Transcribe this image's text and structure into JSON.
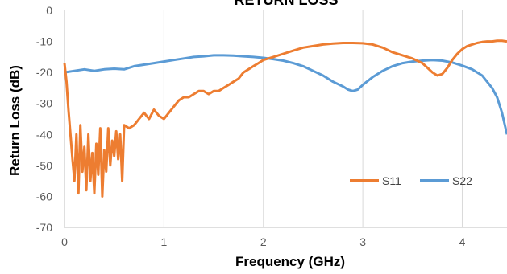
{
  "chart_data": {
    "type": "line",
    "title": "RETURN LOSS",
    "xlabel": "Frequency (GHz)",
    "ylabel": "Return Loss (dB)",
    "xlim": [
      0,
      4.45
    ],
    "ylim": [
      -70,
      0
    ],
    "x_ticks": [
      "0",
      "1",
      "2",
      "3",
      "4"
    ],
    "y_ticks": [
      "0",
      "-10",
      "-20",
      "-30",
      "-40",
      "-50",
      "-60",
      "-70"
    ],
    "grid": "vertical",
    "legend_position": "bottom-right",
    "series": [
      {
        "name": "S11",
        "color": "#ED7D31",
        "points": [
          [
            0.0,
            -17
          ],
          [
            0.02,
            -23
          ],
          [
            0.04,
            -32
          ],
          [
            0.06,
            -40
          ],
          [
            0.08,
            -48
          ],
          [
            0.1,
            -55
          ],
          [
            0.12,
            -40
          ],
          [
            0.14,
            -59
          ],
          [
            0.16,
            -37
          ],
          [
            0.18,
            -52
          ],
          [
            0.2,
            -44
          ],
          [
            0.22,
            -58
          ],
          [
            0.24,
            -40
          ],
          [
            0.26,
            -55
          ],
          [
            0.28,
            -46
          ],
          [
            0.3,
            -59
          ],
          [
            0.32,
            -43
          ],
          [
            0.34,
            -53
          ],
          [
            0.36,
            -38
          ],
          [
            0.38,
            -60
          ],
          [
            0.4,
            -45
          ],
          [
            0.42,
            -52
          ],
          [
            0.44,
            -38
          ],
          [
            0.46,
            -50
          ],
          [
            0.48,
            -42
          ],
          [
            0.5,
            -47
          ],
          [
            0.52,
            -39
          ],
          [
            0.54,
            -48
          ],
          [
            0.56,
            -40
          ],
          [
            0.58,
            -55
          ],
          [
            0.6,
            -37
          ],
          [
            0.65,
            -38
          ],
          [
            0.7,
            -37
          ],
          [
            0.75,
            -35
          ],
          [
            0.8,
            -33
          ],
          [
            0.85,
            -35
          ],
          [
            0.9,
            -32
          ],
          [
            0.95,
            -34
          ],
          [
            1.0,
            -35
          ],
          [
            1.05,
            -33
          ],
          [
            1.1,
            -31
          ],
          [
            1.15,
            -29
          ],
          [
            1.2,
            -28
          ],
          [
            1.25,
            -28
          ],
          [
            1.3,
            -27
          ],
          [
            1.35,
            -26
          ],
          [
            1.4,
            -26
          ],
          [
            1.45,
            -27
          ],
          [
            1.5,
            -26
          ],
          [
            1.55,
            -26
          ],
          [
            1.6,
            -25
          ],
          [
            1.65,
            -24
          ],
          [
            1.7,
            -23
          ],
          [
            1.75,
            -22
          ],
          [
            1.8,
            -20
          ],
          [
            1.85,
            -19
          ],
          [
            1.9,
            -18
          ],
          [
            1.95,
            -17
          ],
          [
            2.0,
            -16
          ],
          [
            2.1,
            -15
          ],
          [
            2.2,
            -14
          ],
          [
            2.3,
            -13
          ],
          [
            2.4,
            -12
          ],
          [
            2.5,
            -11.5
          ],
          [
            2.6,
            -11
          ],
          [
            2.7,
            -10.7
          ],
          [
            2.8,
            -10.5
          ],
          [
            2.9,
            -10.5
          ],
          [
            3.0,
            -10.6
          ],
          [
            3.1,
            -11
          ],
          [
            3.2,
            -12
          ],
          [
            3.3,
            -13.5
          ],
          [
            3.4,
            -14.5
          ],
          [
            3.5,
            -15.5
          ],
          [
            3.6,
            -17
          ],
          [
            3.65,
            -18.5
          ],
          [
            3.7,
            -20
          ],
          [
            3.75,
            -21
          ],
          [
            3.8,
            -20.5
          ],
          [
            3.85,
            -18.5
          ],
          [
            3.9,
            -16
          ],
          [
            3.95,
            -14
          ],
          [
            4.0,
            -12.5
          ],
          [
            4.05,
            -11.5
          ],
          [
            4.1,
            -11
          ],
          [
            4.15,
            -10.5
          ],
          [
            4.2,
            -10.2
          ],
          [
            4.25,
            -10
          ],
          [
            4.3,
            -10
          ],
          [
            4.35,
            -9.8
          ],
          [
            4.4,
            -9.8
          ],
          [
            4.45,
            -10
          ]
        ]
      },
      {
        "name": "S22",
        "color": "#5B9BD5",
        "points": [
          [
            0.0,
            -20
          ],
          [
            0.1,
            -19.5
          ],
          [
            0.2,
            -19
          ],
          [
            0.3,
            -19.5
          ],
          [
            0.4,
            -19
          ],
          [
            0.5,
            -18.8
          ],
          [
            0.6,
            -19
          ],
          [
            0.7,
            -18
          ],
          [
            0.8,
            -17.5
          ],
          [
            0.9,
            -17
          ],
          [
            1.0,
            -16.5
          ],
          [
            1.1,
            -16
          ],
          [
            1.2,
            -15.5
          ],
          [
            1.3,
            -15
          ],
          [
            1.4,
            -14.8
          ],
          [
            1.5,
            -14.5
          ],
          [
            1.6,
            -14.5
          ],
          [
            1.7,
            -14.6
          ],
          [
            1.8,
            -14.8
          ],
          [
            1.9,
            -15
          ],
          [
            2.0,
            -15.3
          ],
          [
            2.1,
            -15.7
          ],
          [
            2.2,
            -16.2
          ],
          [
            2.3,
            -17
          ],
          [
            2.4,
            -18
          ],
          [
            2.5,
            -19.5
          ],
          [
            2.6,
            -21
          ],
          [
            2.7,
            -23
          ],
          [
            2.8,
            -24.5
          ],
          [
            2.85,
            -25.5
          ],
          [
            2.9,
            -26
          ],
          [
            2.95,
            -25.5
          ],
          [
            3.0,
            -24
          ],
          [
            3.1,
            -21.5
          ],
          [
            3.2,
            -19.5
          ],
          [
            3.3,
            -18
          ],
          [
            3.4,
            -17
          ],
          [
            3.5,
            -16.5
          ],
          [
            3.6,
            -16.2
          ],
          [
            3.7,
            -16
          ],
          [
            3.8,
            -16.2
          ],
          [
            3.9,
            -16.8
          ],
          [
            4.0,
            -17.8
          ],
          [
            4.1,
            -19
          ],
          [
            4.2,
            -21
          ],
          [
            4.25,
            -23
          ],
          [
            4.3,
            -25
          ],
          [
            4.35,
            -28
          ],
          [
            4.4,
            -33
          ],
          [
            4.45,
            -40
          ]
        ]
      }
    ]
  }
}
